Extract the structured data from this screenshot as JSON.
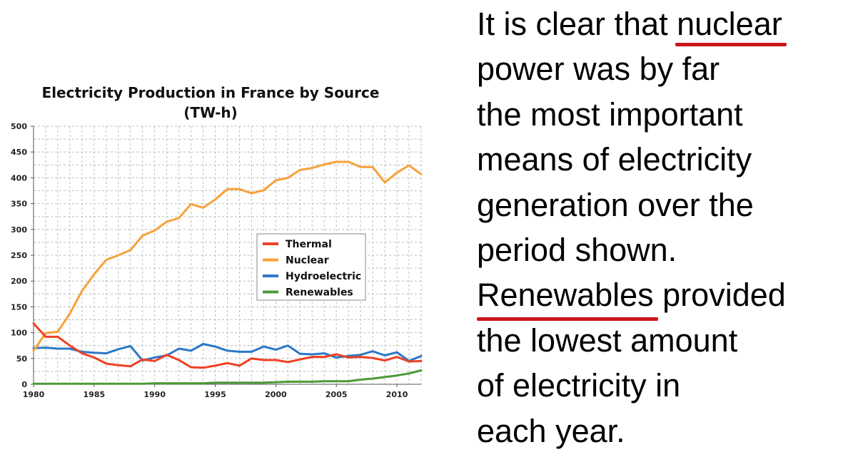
{
  "chart_data": {
    "type": "line",
    "title_line1": "Electricity Production in France by Source",
    "title_line2": "(TW-h)",
    "xlim": [
      1980,
      2012
    ],
    "ylim": [
      0,
      500
    ],
    "x_ticks": [
      1980,
      1985,
      1990,
      1995,
      2000,
      2005,
      2010
    ],
    "y_ticks": [
      0,
      50,
      100,
      150,
      200,
      250,
      300,
      350,
      400,
      450,
      500
    ],
    "grid": true,
    "legend_position": "center-right",
    "x": [
      1980,
      1981,
      1982,
      1983,
      1984,
      1985,
      1986,
      1987,
      1988,
      1989,
      1990,
      1991,
      1992,
      1993,
      1994,
      1995,
      1996,
      1997,
      1998,
      1999,
      2000,
      2001,
      2002,
      2003,
      2004,
      2005,
      2006,
      2007,
      2008,
      2009,
      2010,
      2011,
      2012
    ],
    "series": [
      {
        "name": "Thermal",
        "color": "#ef4123",
        "values": [
          118,
          92,
          92,
          75,
          60,
          52,
          40,
          37,
          35,
          48,
          45,
          57,
          47,
          33,
          32,
          36,
          41,
          36,
          50,
          47,
          47,
          43,
          48,
          53,
          53,
          58,
          52,
          53,
          51,
          46,
          53,
          44,
          45
        ]
      },
      {
        "name": "Nuclear",
        "color": "#f7a13a",
        "values": [
          65,
          99,
          102,
          137,
          181,
          213,
          241,
          250,
          260,
          288,
          298,
          315,
          322,
          349,
          342,
          358,
          378,
          378,
          370,
          376,
          395,
          400,
          415,
          419,
          426,
          431,
          431,
          421,
          421,
          391,
          410,
          424,
          407
        ]
      },
      {
        "name": "Hydroelectric",
        "color": "#2b79c6",
        "values": [
          70,
          71,
          69,
          69,
          63,
          61,
          60,
          68,
          74,
          46,
          52,
          56,
          69,
          65,
          78,
          73,
          65,
          63,
          63,
          73,
          67,
          75,
          59,
          58,
          60,
          52,
          55,
          57,
          64,
          56,
          62,
          45,
          55
        ]
      },
      {
        "name": "Renewables",
        "color": "#4b9a38",
        "values": [
          1,
          1,
          1,
          1,
          1,
          1,
          1,
          1,
          1,
          1,
          2,
          2,
          2,
          2,
          2,
          3,
          3,
          3,
          3,
          3,
          4,
          5,
          5,
          5,
          6,
          6,
          6,
          9,
          11,
          14,
          17,
          21,
          27
        ]
      }
    ]
  },
  "text_panel": {
    "lines": [
      [
        "It is clear that ",
        "nuclear"
      ],
      [
        "power was by far"
      ],
      [
        "the most important"
      ],
      [
        "means of electricity"
      ],
      [
        "generation over the"
      ],
      [
        "period shown."
      ],
      [
        "",
        "Renewables",
        " provided"
      ],
      [
        "the lowest amount"
      ],
      [
        "of electricity in"
      ],
      [
        "each year."
      ]
    ]
  },
  "colors": {
    "underline": "#c8161d"
  }
}
